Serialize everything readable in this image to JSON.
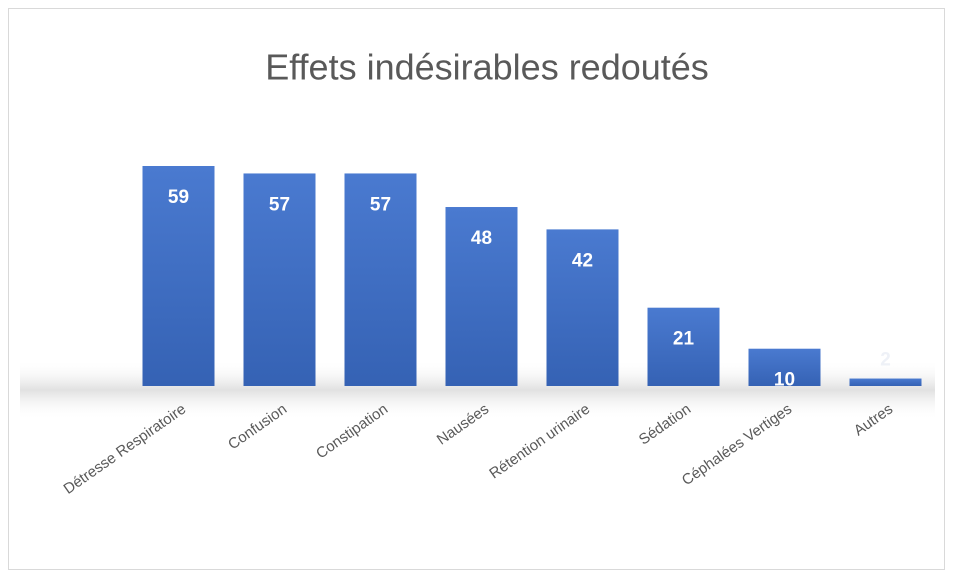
{
  "chart_data": {
    "type": "bar",
    "title": "Effets indésirables redoutés",
    "categories": [
      "Détresse Respiratoire",
      "Confusion",
      "Constipation",
      "Nausées",
      "Rétention urinaire",
      "Sédation",
      "Céphalées Vertiges",
      "Autres"
    ],
    "values": [
      59,
      57,
      57,
      48,
      42,
      21,
      10,
      2
    ],
    "color": "#4472c4"
  }
}
